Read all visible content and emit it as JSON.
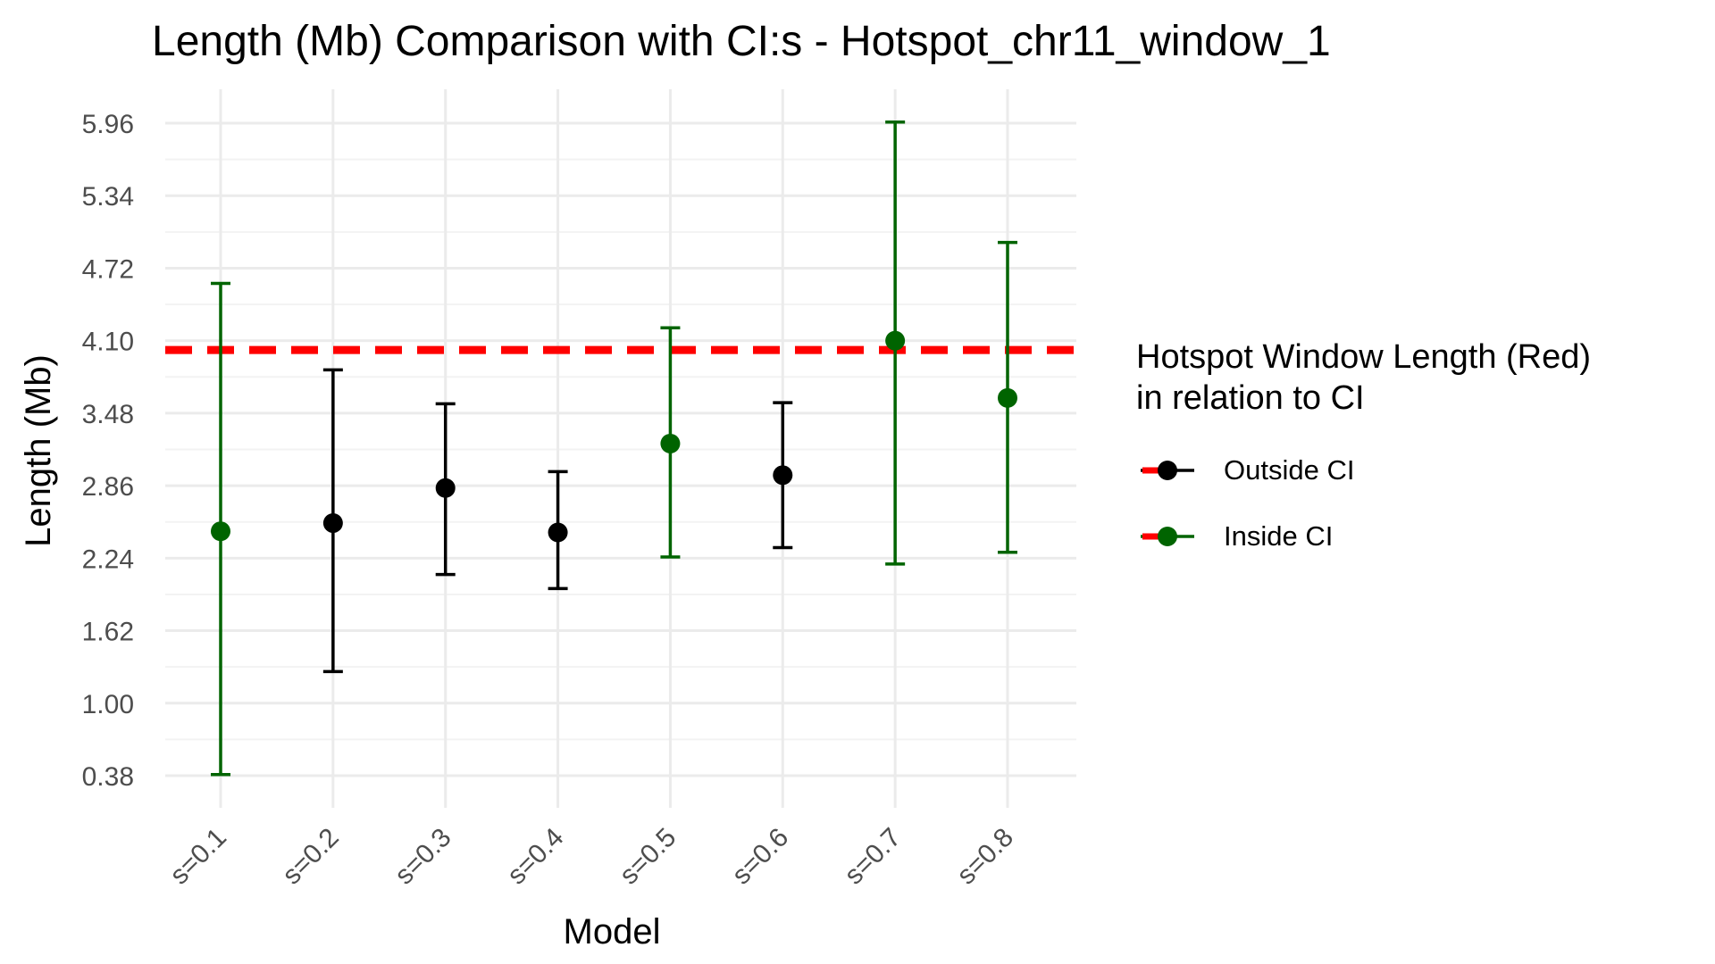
{
  "chart_data": {
    "type": "scatter",
    "title": "Length (Mb) Comparison with CI:s -  Hotspot_chr11_window_1",
    "xlabel": "Model",
    "ylabel": "Length (Mb)",
    "categories": [
      "s=0.1",
      "s=0.2",
      "s=0.3",
      "s=0.4",
      "s=0.5",
      "s=0.6",
      "s=0.7",
      "s=0.8"
    ],
    "values": [
      2.47,
      2.54,
      2.84,
      2.46,
      3.22,
      2.95,
      4.1,
      3.61
    ],
    "ci_lower": [
      0.39,
      1.27,
      2.1,
      1.98,
      2.25,
      2.33,
      2.19,
      2.29
    ],
    "ci_upper": [
      4.59,
      3.85,
      3.56,
      2.98,
      4.21,
      3.57,
      5.97,
      4.94
    ],
    "status": [
      "Inside CI",
      "Outside CI",
      "Outside CI",
      "Outside CI",
      "Inside CI",
      "Outside CI",
      "Inside CI",
      "Inside CI"
    ],
    "reference_line": 4.02,
    "yticks": [
      "0.38",
      "1.00",
      "1.62",
      "2.24",
      "2.86",
      "3.48",
      "4.10",
      "4.72",
      "5.34",
      "5.96"
    ],
    "ylim": [
      0.1,
      6.26
    ],
    "grid": true,
    "legend": {
      "title_line1": "Hotspot Window Length (Red)",
      "title_line2": "in relation to CI",
      "entries": [
        "Outside CI",
        "Inside CI"
      ],
      "placement": "right"
    },
    "colors": {
      "Outside CI": "#000000",
      "Inside CI": "#006400",
      "reference": "#ff0000",
      "grid": "#ebebeb"
    }
  }
}
